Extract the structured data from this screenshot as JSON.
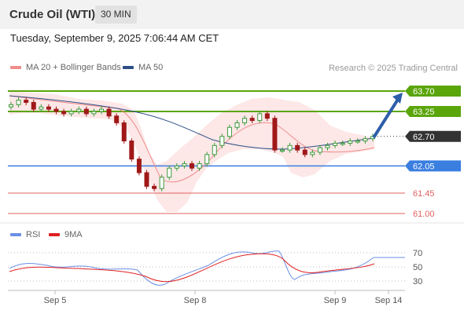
{
  "header": {
    "instrument": "Crude Oil (WTI)",
    "timeframe": "30 MIN",
    "timestamp": "Tuesday, September 9, 2025 7:06:44 AM CET"
  },
  "legend": {
    "ma20_label": "MA 20 + Bollinger Bands",
    "ma50_label": "MA 50",
    "ma20_color": "#f08c8c",
    "ma50_color": "#2d4f86",
    "credit": "Research © 2025 Trading Central"
  },
  "rsi_legend": {
    "rsi_label": "RSI",
    "ma_label": "9MA",
    "rsi_color": "#6a8fe6",
    "ma_color": "#e02020"
  },
  "levels": {
    "r2": "63.70",
    "r1": "63.25",
    "current": "62.70",
    "pivot": "62.05",
    "s1": "61.45",
    "s2": "61.00"
  },
  "level_colors": {
    "resistance": "#5aa50a",
    "current": "#333333",
    "pivot": "#3a7ee0",
    "support": "#e06060"
  },
  "rsi_ticks": [
    "70",
    "50",
    "30"
  ],
  "x_ticks": [
    "Sep 5",
    "Sep 8",
    "Sep 9",
    "Sep 14"
  ],
  "chart_data": {
    "type": "candlestick",
    "timeframe": "30 MIN",
    "horizontal_levels": [
      63.7,
      63.25,
      62.7,
      62.05,
      61.45,
      61.0
    ],
    "projection": {
      "from": 62.7,
      "to": 63.7,
      "direction": "up"
    },
    "close_approx": [
      63.4,
      63.5,
      63.45,
      63.3,
      63.35,
      63.3,
      63.25,
      63.2,
      63.25,
      63.3,
      63.2,
      63.25,
      63.3,
      63.15,
      63.0,
      62.6,
      62.2,
      61.9,
      61.6,
      61.55,
      61.8,
      62.0,
      62.05,
      62.1,
      62.0,
      62.1,
      62.3,
      62.5,
      62.7,
      62.9,
      63.0,
      63.1,
      63.05,
      63.2,
      63.1,
      62.4,
      62.4,
      62.5,
      62.4,
      62.3,
      62.35,
      62.45,
      62.5,
      62.55,
      62.55,
      62.6,
      62.6,
      62.65,
      62.7
    ],
    "rsi": {
      "current": 63,
      "ticks": [
        70,
        50,
        30
      ]
    }
  }
}
